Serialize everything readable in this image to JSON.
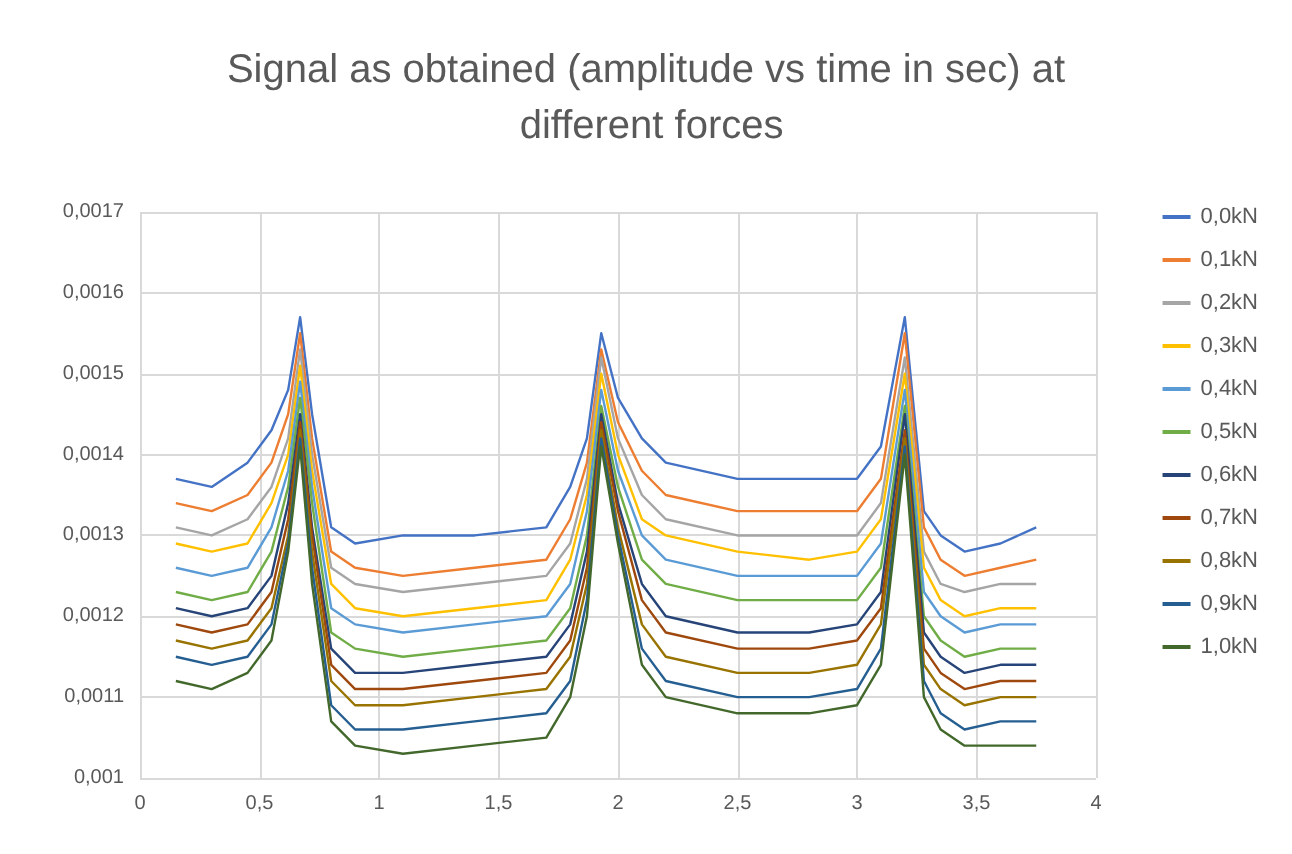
{
  "chart_data": {
    "type": "line",
    "title": "Signal as obtained (amplitude vs time in sec) at different forces",
    "x": [
      0.15,
      0.3,
      0.45,
      0.55,
      0.62,
      0.67,
      0.72,
      0.8,
      0.9,
      1.1,
      1.4,
      1.7,
      1.8,
      1.87,
      1.93,
      2.0,
      2.1,
      2.2,
      2.5,
      2.8,
      3.0,
      3.1,
      3.2,
      3.28,
      3.35,
      3.45,
      3.6,
      3.75
    ],
    "series": [
      {
        "name": "0,0kN",
        "color": "#4472c4",
        "values": [
          0.00137,
          0.00136,
          0.00139,
          0.00143,
          0.00148,
          0.00157,
          0.00145,
          0.00131,
          0.00129,
          0.0013,
          0.0013,
          0.00131,
          0.00136,
          0.00142,
          0.00155,
          0.00147,
          0.00142,
          0.00139,
          0.00137,
          0.00137,
          0.00137,
          0.00141,
          0.00157,
          0.00133,
          0.0013,
          0.00128,
          0.00129,
          0.00131
        ]
      },
      {
        "name": "0,1kN",
        "color": "#ed7d31",
        "values": [
          0.00134,
          0.00133,
          0.00135,
          0.00139,
          0.00145,
          0.00155,
          0.00142,
          0.00128,
          0.00126,
          0.00125,
          0.00126,
          0.00127,
          0.00132,
          0.00139,
          0.00153,
          0.00144,
          0.00138,
          0.00135,
          0.00133,
          0.00133,
          0.00133,
          0.00137,
          0.00155,
          0.00131,
          0.00127,
          0.00125,
          0.00126,
          0.00127
        ]
      },
      {
        "name": "0,2kN",
        "color": "#a5a5a5",
        "values": [
          0.00131,
          0.0013,
          0.00132,
          0.00136,
          0.00142,
          0.00153,
          0.0014,
          0.00126,
          0.00124,
          0.00123,
          0.00124,
          0.00125,
          0.00129,
          0.00137,
          0.00152,
          0.00142,
          0.00135,
          0.00132,
          0.0013,
          0.0013,
          0.0013,
          0.00134,
          0.00152,
          0.00128,
          0.00124,
          0.00123,
          0.00124,
          0.00124
        ]
      },
      {
        "name": "0,3kN",
        "color": "#ffc000",
        "values": [
          0.00129,
          0.00128,
          0.00129,
          0.00134,
          0.0014,
          0.00151,
          0.00138,
          0.00124,
          0.00121,
          0.0012,
          0.00121,
          0.00122,
          0.00127,
          0.00135,
          0.0015,
          0.0014,
          0.00132,
          0.0013,
          0.00128,
          0.00127,
          0.00128,
          0.00132,
          0.0015,
          0.00126,
          0.00122,
          0.0012,
          0.00121,
          0.00121
        ]
      },
      {
        "name": "0,4kN",
        "color": "#5b9bd5",
        "values": [
          0.00126,
          0.00125,
          0.00126,
          0.00131,
          0.00138,
          0.00149,
          0.00136,
          0.00121,
          0.00119,
          0.00118,
          0.00119,
          0.0012,
          0.00124,
          0.00133,
          0.00148,
          0.00138,
          0.0013,
          0.00127,
          0.00125,
          0.00125,
          0.00125,
          0.00129,
          0.00148,
          0.00123,
          0.0012,
          0.00118,
          0.00119,
          0.00119
        ]
      },
      {
        "name": "0,5kN",
        "color": "#70ad47",
        "values": [
          0.00123,
          0.00122,
          0.00123,
          0.00128,
          0.00136,
          0.00147,
          0.00134,
          0.00118,
          0.00116,
          0.00115,
          0.00116,
          0.00117,
          0.00121,
          0.0013,
          0.00146,
          0.00136,
          0.00127,
          0.00124,
          0.00122,
          0.00122,
          0.00122,
          0.00126,
          0.00146,
          0.0012,
          0.00117,
          0.00115,
          0.00116,
          0.00116
        ]
      },
      {
        "name": "0,6kN",
        "color": "#264478",
        "values": [
          0.00121,
          0.0012,
          0.00121,
          0.00125,
          0.00134,
          0.00145,
          0.00131,
          0.00116,
          0.00113,
          0.00113,
          0.00114,
          0.00115,
          0.00119,
          0.00128,
          0.00145,
          0.00134,
          0.00124,
          0.0012,
          0.00118,
          0.00118,
          0.00119,
          0.00123,
          0.00145,
          0.00118,
          0.00115,
          0.00113,
          0.00114,
          0.00114
        ]
      },
      {
        "name": "0,7kN",
        "color": "#9e480e",
        "values": [
          0.00119,
          0.00118,
          0.00119,
          0.00123,
          0.00132,
          0.00144,
          0.0013,
          0.00114,
          0.00111,
          0.00111,
          0.00112,
          0.00113,
          0.00117,
          0.00126,
          0.00144,
          0.00133,
          0.00122,
          0.00118,
          0.00116,
          0.00116,
          0.00117,
          0.00121,
          0.00143,
          0.00116,
          0.00113,
          0.00111,
          0.00112,
          0.00112
        ]
      },
      {
        "name": "0,8kN",
        "color": "#997300",
        "values": [
          0.00117,
          0.00116,
          0.00117,
          0.00121,
          0.0013,
          0.00143,
          0.00128,
          0.00112,
          0.00109,
          0.00109,
          0.0011,
          0.00111,
          0.00115,
          0.00124,
          0.00143,
          0.00131,
          0.00119,
          0.00115,
          0.00113,
          0.00113,
          0.00114,
          0.00119,
          0.00142,
          0.00114,
          0.00111,
          0.00109,
          0.0011,
          0.0011
        ]
      },
      {
        "name": "0,9kN",
        "color": "#255e91",
        "values": [
          0.00115,
          0.00114,
          0.00115,
          0.00119,
          0.00129,
          0.00142,
          0.00126,
          0.00109,
          0.00106,
          0.00106,
          0.00107,
          0.00108,
          0.00112,
          0.00122,
          0.00142,
          0.0013,
          0.00116,
          0.00112,
          0.0011,
          0.0011,
          0.00111,
          0.00116,
          0.00141,
          0.00112,
          0.00108,
          0.00106,
          0.00107,
          0.00107
        ]
      },
      {
        "name": "1,0kN",
        "color": "#43682b",
        "values": [
          0.00112,
          0.00111,
          0.00113,
          0.00117,
          0.00128,
          0.00141,
          0.00124,
          0.00107,
          0.00104,
          0.00103,
          0.00104,
          0.00105,
          0.0011,
          0.0012,
          0.00141,
          0.00129,
          0.00114,
          0.0011,
          0.00108,
          0.00108,
          0.00109,
          0.00114,
          0.0014,
          0.0011,
          0.00106,
          0.00104,
          0.00104,
          0.00104
        ]
      }
    ],
    "xlim": [
      0,
      4
    ],
    "xticks": [
      {
        "value": 0,
        "label": "0"
      },
      {
        "value": 0.5,
        "label": "0,5"
      },
      {
        "value": 1,
        "label": "1"
      },
      {
        "value": 1.5,
        "label": "1,5"
      },
      {
        "value": 2,
        "label": "2"
      },
      {
        "value": 2.5,
        "label": "2,5"
      },
      {
        "value": 3,
        "label": "3"
      },
      {
        "value": 3.5,
        "label": "3,5"
      },
      {
        "value": 4,
        "label": "4"
      }
    ],
    "ylim": [
      0.001,
      0.0017
    ],
    "yticks": [
      {
        "value": 0.001,
        "label": "0,001"
      },
      {
        "value": 0.0011,
        "label": "0,0011"
      },
      {
        "value": 0.0012,
        "label": "0,0012"
      },
      {
        "value": 0.0013,
        "label": "0,0013"
      },
      {
        "value": 0.0014,
        "label": "0,0014"
      },
      {
        "value": 0.0015,
        "label": "0,0015"
      },
      {
        "value": 0.0016,
        "label": "0,0016"
      },
      {
        "value": 0.0017,
        "label": "0,0017"
      }
    ],
    "grid": true,
    "legend": "right",
    "marker": "none",
    "line_style": "solid"
  }
}
